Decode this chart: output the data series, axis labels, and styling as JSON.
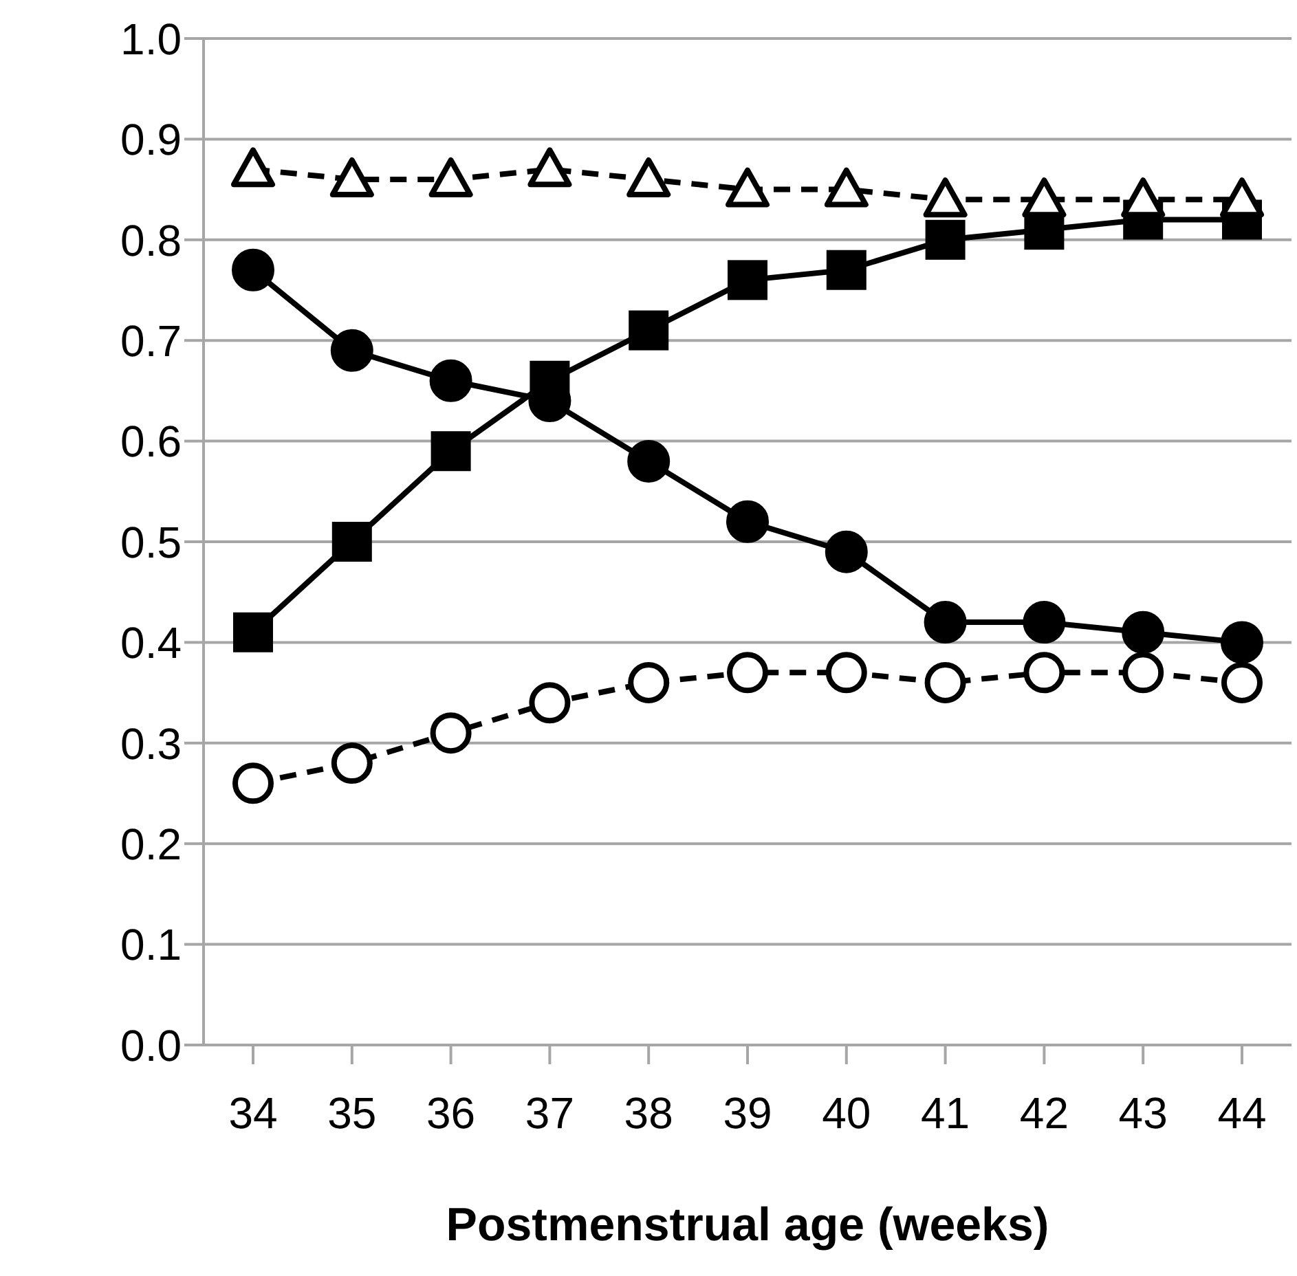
{
  "chart_data": {
    "type": "line",
    "xlabel": "Postmenstrual age (weeks)",
    "categories": [
      "34",
      "35",
      "36",
      "37",
      "38",
      "39",
      "40",
      "41",
      "42",
      "43",
      "44"
    ],
    "ylim": [
      0,
      1
    ],
    "yticks": [
      {
        "value": 0,
        "label": "0.0"
      },
      0.1,
      0.2,
      0.3,
      0.4,
      0.5,
      0.6,
      0.7,
      0.8,
      0.9,
      {
        "value": 1,
        "label": "1.0"
      }
    ],
    "grid": "y",
    "series": [
      {
        "color": "#000000",
        "marker": "triangle",
        "line_style": "dashed",
        "values": [
          0.87,
          0.86,
          0.86,
          0.87,
          0.86,
          0.85,
          0.85,
          0.84,
          0.84,
          0.84,
          0.84
        ]
      },
      {
        "color": "#000000",
        "marker": "square",
        "line_style": "solid",
        "values": [
          0.41,
          0.5,
          0.59,
          0.66,
          0.71,
          0.76,
          0.77,
          0.8,
          0.81,
          0.82,
          0.82
        ]
      },
      {
        "color": "#000000",
        "marker": "circle",
        "line_style": "solid",
        "values": [
          0.77,
          0.69,
          0.66,
          0.64,
          0.58,
          0.52,
          0.49,
          0.42,
          0.42,
          0.41,
          0.4
        ]
      },
      {
        "color": "#000000",
        "marker": "circle",
        "line_style": "dashed",
        "values": [
          0.26,
          0.28,
          0.31,
          0.34,
          0.36,
          0.37,
          0.37,
          0.36,
          0.37,
          0.37,
          0.36
        ]
      }
    ]
  }
}
